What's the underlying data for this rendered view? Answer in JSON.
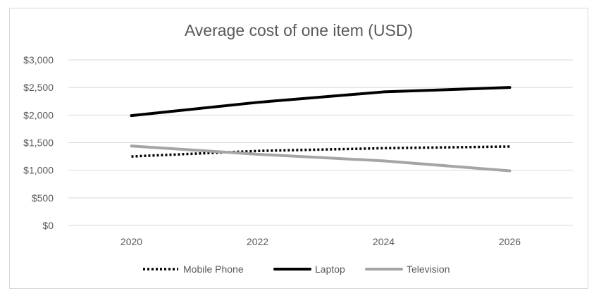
{
  "chart_data": {
    "type": "line",
    "title": "Average cost of one item (USD)",
    "xlabel": "",
    "ylabel": "",
    "x": [
      "2020",
      "2022",
      "2024",
      "2026"
    ],
    "y_ticks": [
      "$0",
      "$500",
      "$1,000",
      "$1,500",
      "$2,000",
      "$2,500",
      "$3,000"
    ],
    "ylim": [
      0,
      3000
    ],
    "grid": true,
    "legend_position": "bottom",
    "series": [
      {
        "name": "Mobile Phone",
        "values": [
          1250,
          1350,
          1400,
          1430
        ],
        "color": "#000000",
        "style": "dotted"
      },
      {
        "name": "Laptop",
        "values": [
          1990,
          2230,
          2420,
          2500
        ],
        "color": "#000000",
        "style": "solid"
      },
      {
        "name": "Television",
        "values": [
          1440,
          1290,
          1170,
          990
        ],
        "color": "#a5a5a5",
        "style": "solid"
      }
    ]
  }
}
